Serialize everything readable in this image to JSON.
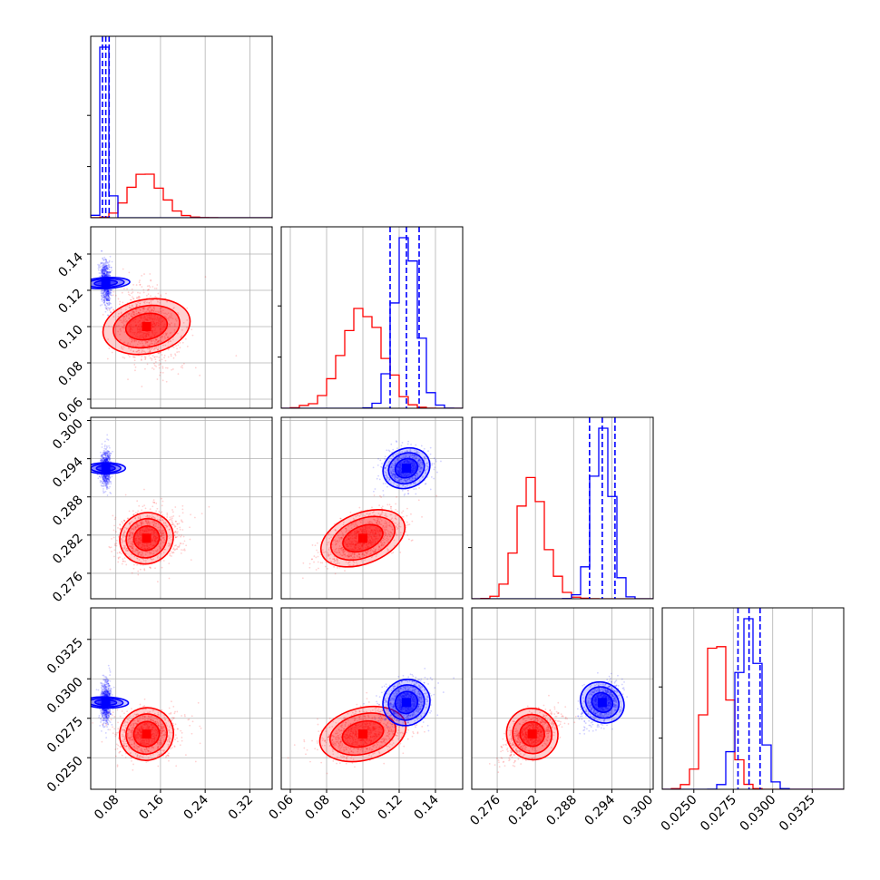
{
  "chart_data": {
    "type": "corner",
    "parameters": 4,
    "grid": true,
    "colors": {
      "red": "#ff0000",
      "blue": "#0000ff",
      "grid": "#b0b0b0"
    },
    "series": [
      {
        "color": "red",
        "mean": [
          0.135,
          0.1,
          0.2815,
          0.0265
        ],
        "sd": [
          0.022,
          0.011,
          0.0018,
          0.00075
        ],
        "skew": [
          1.1,
          0,
          0.8,
          0
        ],
        "quantiles": []
      },
      {
        "color": "blue",
        "mean": [
          0.062,
          0.124,
          0.2925,
          0.0285
        ],
        "sd": [
          0.0045,
          0.006,
          0.0014,
          0.00065
        ],
        "skew": [
          0,
          0,
          0,
          0
        ],
        "quantiles": [
          [
            0.056,
            0.062,
            0.068
          ],
          [
            0.115,
            0.124,
            0.131
          ],
          [
            0.2905,
            0.2925,
            0.2945
          ],
          [
            0.0278,
            0.0285,
            0.0292
          ]
        ]
      }
    ],
    "correlations": {
      "red": [
        [
          0,
          1,
          -0.2
        ],
        [
          0,
          2,
          0.1
        ],
        [
          0,
          3,
          0.05
        ],
        [
          1,
          2,
          0.55
        ],
        [
          1,
          3,
          0.3
        ],
        [
          2,
          3,
          0.6
        ]
      ],
      "blue": [
        [
          0,
          1,
          -0.2
        ],
        [
          0,
          2,
          0.0
        ],
        [
          0,
          3,
          0.1
        ],
        [
          1,
          2,
          0.2
        ],
        [
          1,
          3,
          0.2
        ],
        [
          2,
          3,
          0.3
        ]
      ]
    },
    "axes": [
      {
        "range": [
          0.035,
          0.36
        ],
        "ticks": [
          0.08,
          0.16,
          0.24,
          0.32
        ],
        "tick_labels": [
          "0.08",
          "0.16",
          "0.24",
          "0.32"
        ]
      },
      {
        "range": [
          0.055,
          0.155
        ],
        "ticks": [
          0.06,
          0.08,
          0.1,
          0.12,
          0.14
        ],
        "tick_labels": [
          "0.06",
          "0.08",
          "0.10",
          "0.12",
          "0.14"
        ]
      },
      {
        "range": [
          0.272,
          0.3005
        ],
        "ticks": [
          0.276,
          0.282,
          0.288,
          0.294,
          0.3
        ],
        "tick_labels": [
          "0.276",
          "0.282",
          "0.288",
          "0.294",
          "0.300"
        ]
      },
      {
        "range": [
          0.023,
          0.0345
        ],
        "ticks": [
          0.025,
          0.0275,
          0.03,
          0.0325
        ],
        "tick_labels": [
          "0.0250",
          "0.0275",
          "0.0300",
          "0.0325"
        ]
      }
    ]
  }
}
